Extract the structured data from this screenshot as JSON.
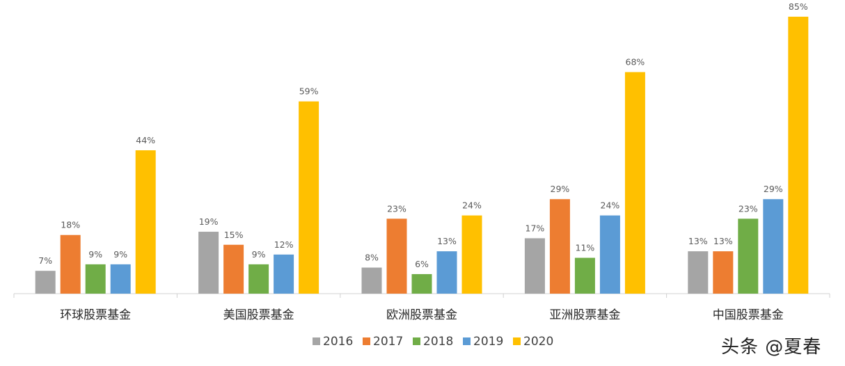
{
  "chart_data": {
    "type": "bar",
    "categories": [
      "环球股票基金",
      "美国股票基金",
      "欧洲股票基金",
      "亚洲股票基金",
      "中国股票基金"
    ],
    "series": [
      {
        "name": "2016",
        "color": "#A5A5A5",
        "values": [
          7,
          19,
          8,
          17,
          13
        ],
        "labels": [
          "7%",
          "19%",
          "8%",
          "17%",
          "13%"
        ]
      },
      {
        "name": "2017",
        "color": "#ED7D31",
        "values": [
          18,
          15,
          23,
          29,
          13
        ],
        "labels": [
          "18%",
          "15%",
          "23%",
          "29%",
          "13%"
        ]
      },
      {
        "name": "2018",
        "color": "#70AD47",
        "values": [
          9,
          9,
          6,
          11,
          23
        ],
        "labels": [
          "9%",
          "9%",
          "6%",
          "11%",
          "23%"
        ]
      },
      {
        "name": "2019",
        "color": "#5B9BD5",
        "values": [
          9,
          12,
          13,
          24,
          29
        ],
        "labels": [
          "9%",
          "12%",
          "13%",
          "24%",
          "29%"
        ]
      },
      {
        "name": "2020",
        "color": "#FFC000",
        "values": [
          44,
          59,
          24,
          68,
          85
        ],
        "labels": [
          "44%",
          "59%",
          "24%",
          "68%",
          "85%"
        ]
      }
    ],
    "title": "",
    "xlabel": "",
    "ylabel": "",
    "ylim": [
      0,
      85
    ],
    "grid": false,
    "legend": "bottom",
    "data_labels": true
  },
  "watermark": "头条 @夏春"
}
